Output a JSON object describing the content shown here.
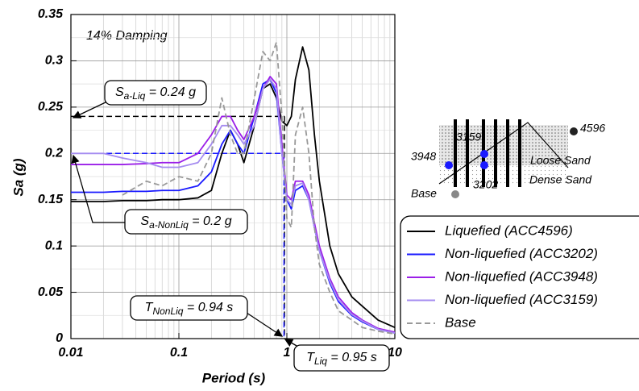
{
  "chart_data": {
    "type": "line",
    "x_scale": "log",
    "xlabel": "Period (s)",
    "ylabel": "Sa (g)",
    "note": "14% Damping",
    "xlim": [
      0.01,
      10
    ],
    "xticks": [
      0.01,
      0.1,
      1,
      10
    ],
    "ylim": [
      0,
      0.35
    ],
    "yticks": [
      0,
      0.05,
      0.1,
      0.15,
      0.2,
      0.25,
      0.3,
      0.35
    ],
    "grid": true,
    "minor_grid": true,
    "x": [
      0.01,
      0.02,
      0.03,
      0.05,
      0.07,
      0.1,
      0.15,
      0.2,
      0.25,
      0.3,
      0.35,
      0.4,
      0.5,
      0.6,
      0.7,
      0.8,
      0.9,
      1.0,
      1.1,
      1.2,
      1.4,
      1.6,
      1.8,
      2,
      2.5,
      3,
      4,
      5,
      7,
      10
    ],
    "series": [
      {
        "name": "Liquefied (ACC4596)",
        "color": "#000000",
        "dash": false,
        "values": [
          0.148,
          0.148,
          0.149,
          0.149,
          0.15,
          0.15,
          0.152,
          0.16,
          0.2,
          0.225,
          0.21,
          0.19,
          0.23,
          0.27,
          0.275,
          0.26,
          0.235,
          0.23,
          0.24,
          0.28,
          0.315,
          0.29,
          0.22,
          0.17,
          0.1,
          0.07,
          0.045,
          0.035,
          0.02,
          0.012
        ]
      },
      {
        "name": "Non-liquefied (ACC3202)",
        "color": "#1a1aff",
        "dash": false,
        "values": [
          0.158,
          0.158,
          0.159,
          0.159,
          0.16,
          0.16,
          0.165,
          0.18,
          0.21,
          0.225,
          0.21,
          0.2,
          0.24,
          0.275,
          0.28,
          0.265,
          0.2,
          0.15,
          0.14,
          0.16,
          0.165,
          0.15,
          0.12,
          0.095,
          0.06,
          0.04,
          0.025,
          0.018,
          0.01,
          0.006
        ]
      },
      {
        "name": "Non-liquefied (ACC3948)",
        "color": "#9b1fe8",
        "dash": false,
        "values": [
          0.188,
          0.188,
          0.188,
          0.189,
          0.19,
          0.19,
          0.2,
          0.22,
          0.24,
          0.24,
          0.225,
          0.215,
          0.24,
          0.27,
          0.283,
          0.275,
          0.21,
          0.155,
          0.15,
          0.17,
          0.17,
          0.155,
          0.125,
          0.1,
          0.065,
          0.045,
          0.028,
          0.02,
          0.011,
          0.007
        ]
      },
      {
        "name": "Non-liquefied (ACC3159)",
        "color": "#a58cf0",
        "dash": false,
        "values": [
          0.2,
          0.2,
          0.195,
          0.19,
          0.185,
          0.185,
          0.19,
          0.21,
          0.23,
          0.23,
          0.22,
          0.21,
          0.23,
          0.27,
          0.28,
          0.27,
          0.2,
          0.15,
          0.145,
          0.165,
          0.168,
          0.15,
          0.12,
          0.095,
          0.062,
          0.042,
          0.026,
          0.019,
          0.01,
          0.006
        ]
      },
      {
        "name": "Base",
        "color": "#999999",
        "dash": true,
        "values": [
          null,
          null,
          0.155,
          0.17,
          0.165,
          0.175,
          0.17,
          0.2,
          0.26,
          0.22,
          0.2,
          0.2,
          0.26,
          0.31,
          0.3,
          0.32,
          0.24,
          0.13,
          0.12,
          0.22,
          0.25,
          0.2,
          0.12,
          0.08,
          0.05,
          0.03,
          0.02,
          0.012,
          0.008,
          0.005
        ]
      }
    ],
    "reference_lines": [
      {
        "y": 0.24,
        "x": 0.95,
        "color": "#000000"
      },
      {
        "y": 0.2,
        "x": 0.94,
        "color": "#1a1aff"
      }
    ],
    "annotations": [
      {
        "text": "S",
        "sub": "a-Liq",
        "tail": " = 0.24 g"
      },
      {
        "text": "S",
        "sub": "a-NonLiq",
        "tail": " = 0.2 g"
      },
      {
        "text": "T",
        "sub": "NonLiq",
        "tail": " = 0.94 s"
      },
      {
        "text": "T",
        "sub": "Liq",
        "tail": " = 0.95 s"
      }
    ],
    "inset_labels": [
      "4596",
      "3159",
      "3948",
      "3202",
      "Base",
      "Loose Sand",
      "Dense Sand"
    ]
  }
}
